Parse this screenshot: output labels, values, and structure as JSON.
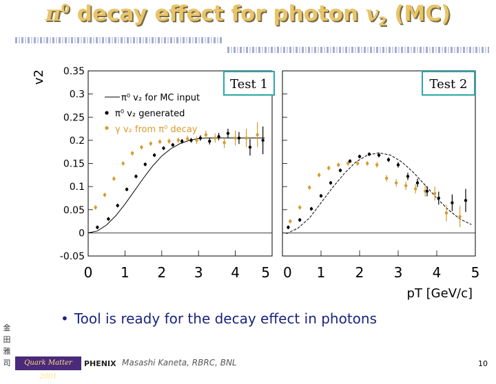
{
  "title": {
    "pi": "π",
    "zero": "0",
    "text": " decay effect for photon ",
    "v": "v",
    "sub": "2",
    "mc": " (MC)"
  },
  "bullet": "Tool is ready for the decay effect in photons",
  "footer": {
    "author": "Masashi Kaneta, RBRC, BNL",
    "page": "10",
    "conference": "Quark Matter 2001",
    "experiment": "PHENIX"
  },
  "side_logo_chars": [
    "金",
    "田",
    "雅",
    "司"
  ],
  "chart_data": {
    "type": "scatter",
    "ylabel": "v2",
    "xlabel": "pT [GeV/c]",
    "ylim": [
      -0.05,
      0.35
    ],
    "yticks": [
      "0.35",
      "0.3",
      "0.25",
      "0.2",
      "0.15",
      "0.1",
      "0.05",
      "0",
      "-0.05"
    ],
    "ytick_values": [
      0.35,
      0.3,
      0.25,
      0.2,
      0.15,
      0.1,
      0.05,
      0,
      -0.05
    ],
    "legend": {
      "line": "π⁰ v₂ for MC input",
      "black": "π⁰ v₂ generated",
      "orange": "γ v₂ from π⁰ decay",
      "placement": "top-left of left panel"
    },
    "colors": {
      "generated": "#000000",
      "decay": "#d79a2b",
      "input_line": "#000000"
    },
    "panels": [
      {
        "label": "Test 1",
        "xlim": [
          0,
          5
        ],
        "xticks": [
          "0",
          "1",
          "2",
          "3",
          "4",
          "5"
        ],
        "input_line": [
          [
            0,
            0
          ],
          [
            0.25,
            0.004
          ],
          [
            0.5,
            0.017
          ],
          [
            0.75,
            0.037
          ],
          [
            1,
            0.062
          ],
          [
            1.25,
            0.09
          ],
          [
            1.5,
            0.118
          ],
          [
            1.75,
            0.144
          ],
          [
            2,
            0.166
          ],
          [
            2.25,
            0.182
          ],
          [
            2.5,
            0.193
          ],
          [
            2.75,
            0.2
          ],
          [
            3,
            0.204
          ],
          [
            3.25,
            0.205
          ],
          [
            3.5,
            0.205
          ],
          [
            4,
            0.205
          ],
          [
            4.8,
            0.205
          ]
        ],
        "generated": [
          {
            "x": 0.25,
            "y": 0.012,
            "e": 0.004
          },
          {
            "x": 0.55,
            "y": 0.03,
            "e": 0.004
          },
          {
            "x": 0.8,
            "y": 0.059,
            "e": 0.004
          },
          {
            "x": 1.05,
            "y": 0.094,
            "e": 0.004
          },
          {
            "x": 1.3,
            "y": 0.122,
            "e": 0.004
          },
          {
            "x": 1.55,
            "y": 0.148,
            "e": 0.004
          },
          {
            "x": 1.8,
            "y": 0.168,
            "e": 0.004
          },
          {
            "x": 2.05,
            "y": 0.183,
            "e": 0.004
          },
          {
            "x": 2.3,
            "y": 0.19,
            "e": 0.004
          },
          {
            "x": 2.55,
            "y": 0.198,
            "e": 0.005
          },
          {
            "x": 2.8,
            "y": 0.2,
            "e": 0.005
          },
          {
            "x": 3.05,
            "y": 0.205,
            "e": 0.006
          },
          {
            "x": 3.3,
            "y": 0.198,
            "e": 0.007
          },
          {
            "x": 3.55,
            "y": 0.208,
            "e": 0.008
          },
          {
            "x": 3.8,
            "y": 0.215,
            "e": 0.01
          },
          {
            "x": 4.1,
            "y": 0.205,
            "e": 0.013
          },
          {
            "x": 4.4,
            "y": 0.185,
            "e": 0.018
          },
          {
            "x": 4.75,
            "y": 0.2,
            "e": 0.03
          }
        ],
        "decay": [
          {
            "x": 0.2,
            "y": 0.055,
            "e": 0.005
          },
          {
            "x": 0.45,
            "y": 0.082,
            "e": 0.005
          },
          {
            "x": 0.7,
            "y": 0.117,
            "e": 0.005
          },
          {
            "x": 0.95,
            "y": 0.15,
            "e": 0.005
          },
          {
            "x": 1.2,
            "y": 0.172,
            "e": 0.005
          },
          {
            "x": 1.45,
            "y": 0.185,
            "e": 0.005
          },
          {
            "x": 1.7,
            "y": 0.193,
            "e": 0.005
          },
          {
            "x": 1.95,
            "y": 0.197,
            "e": 0.005
          },
          {
            "x": 2.2,
            "y": 0.198,
            "e": 0.006
          },
          {
            "x": 2.45,
            "y": 0.2,
            "e": 0.006
          },
          {
            "x": 2.7,
            "y": 0.203,
            "e": 0.007
          },
          {
            "x": 2.95,
            "y": 0.2,
            "e": 0.008
          },
          {
            "x": 3.2,
            "y": 0.212,
            "e": 0.009
          },
          {
            "x": 3.45,
            "y": 0.205,
            "e": 0.01
          },
          {
            "x": 3.7,
            "y": 0.195,
            "e": 0.012
          },
          {
            "x": 4.0,
            "y": 0.205,
            "e": 0.016
          },
          {
            "x": 4.3,
            "y": 0.205,
            "e": 0.02
          },
          {
            "x": 4.6,
            "y": 0.212,
            "e": 0.027
          }
        ]
      },
      {
        "label": "Test 2",
        "xlim": [
          0,
          5
        ],
        "xticks": [
          "0",
          "1",
          "2",
          "3",
          "4",
          "5"
        ],
        "input_line": [
          [
            0.1,
            -0.002
          ],
          [
            0.4,
            0.01
          ],
          [
            0.7,
            0.032
          ],
          [
            1.0,
            0.065
          ],
          [
            1.3,
            0.098
          ],
          [
            1.6,
            0.128
          ],
          [
            1.9,
            0.153
          ],
          [
            2.2,
            0.168
          ],
          [
            2.5,
            0.173
          ],
          [
            2.8,
            0.168
          ],
          [
            3.1,
            0.153
          ],
          [
            3.4,
            0.13
          ],
          [
            3.7,
            0.103
          ],
          [
            4.0,
            0.075
          ],
          [
            4.3,
            0.05
          ],
          [
            4.6,
            0.03
          ],
          [
            4.9,
            0.018
          ]
        ],
        "generated": [
          {
            "x": 0.15,
            "y": 0.012,
            "e": 0.004
          },
          {
            "x": 0.45,
            "y": 0.028,
            "e": 0.004
          },
          {
            "x": 0.75,
            "y": 0.052,
            "e": 0.004
          },
          {
            "x": 1.0,
            "y": 0.08,
            "e": 0.004
          },
          {
            "x": 1.25,
            "y": 0.108,
            "e": 0.004
          },
          {
            "x": 1.5,
            "y": 0.135,
            "e": 0.004
          },
          {
            "x": 1.75,
            "y": 0.155,
            "e": 0.004
          },
          {
            "x": 2.0,
            "y": 0.165,
            "e": 0.004
          },
          {
            "x": 2.25,
            "y": 0.17,
            "e": 0.004
          },
          {
            "x": 2.5,
            "y": 0.168,
            "e": 0.005
          },
          {
            "x": 2.75,
            "y": 0.158,
            "e": 0.005
          },
          {
            "x": 3.0,
            "y": 0.147,
            "e": 0.006
          },
          {
            "x": 3.25,
            "y": 0.122,
            "e": 0.008
          },
          {
            "x": 3.5,
            "y": 0.108,
            "e": 0.009
          },
          {
            "x": 3.75,
            "y": 0.09,
            "e": 0.011
          },
          {
            "x": 4.05,
            "y": 0.075,
            "e": 0.014
          },
          {
            "x": 4.4,
            "y": 0.065,
            "e": 0.018
          },
          {
            "x": 4.75,
            "y": 0.07,
            "e": 0.025
          }
        ],
        "decay": [
          {
            "x": 0.2,
            "y": 0.025,
            "e": 0.005
          },
          {
            "x": 0.45,
            "y": 0.055,
            "e": 0.005
          },
          {
            "x": 0.7,
            "y": 0.098,
            "e": 0.005
          },
          {
            "x": 0.95,
            "y": 0.125,
            "e": 0.005
          },
          {
            "x": 1.2,
            "y": 0.14,
            "e": 0.005
          },
          {
            "x": 1.45,
            "y": 0.147,
            "e": 0.005
          },
          {
            "x": 1.7,
            "y": 0.15,
            "e": 0.005
          },
          {
            "x": 1.95,
            "y": 0.15,
            "e": 0.005
          },
          {
            "x": 2.2,
            "y": 0.15,
            "e": 0.005
          },
          {
            "x": 2.45,
            "y": 0.147,
            "e": 0.006
          },
          {
            "x": 2.7,
            "y": 0.118,
            "e": 0.007
          },
          {
            "x": 2.95,
            "y": 0.108,
            "e": 0.008
          },
          {
            "x": 3.2,
            "y": 0.102,
            "e": 0.009
          },
          {
            "x": 3.45,
            "y": 0.095,
            "e": 0.01
          },
          {
            "x": 3.7,
            "y": 0.09,
            "e": 0.012
          },
          {
            "x": 3.95,
            "y": 0.085,
            "e": 0.015
          },
          {
            "x": 4.25,
            "y": 0.043,
            "e": 0.018
          },
          {
            "x": 4.6,
            "y": 0.035,
            "e": 0.023
          }
        ]
      }
    ]
  }
}
